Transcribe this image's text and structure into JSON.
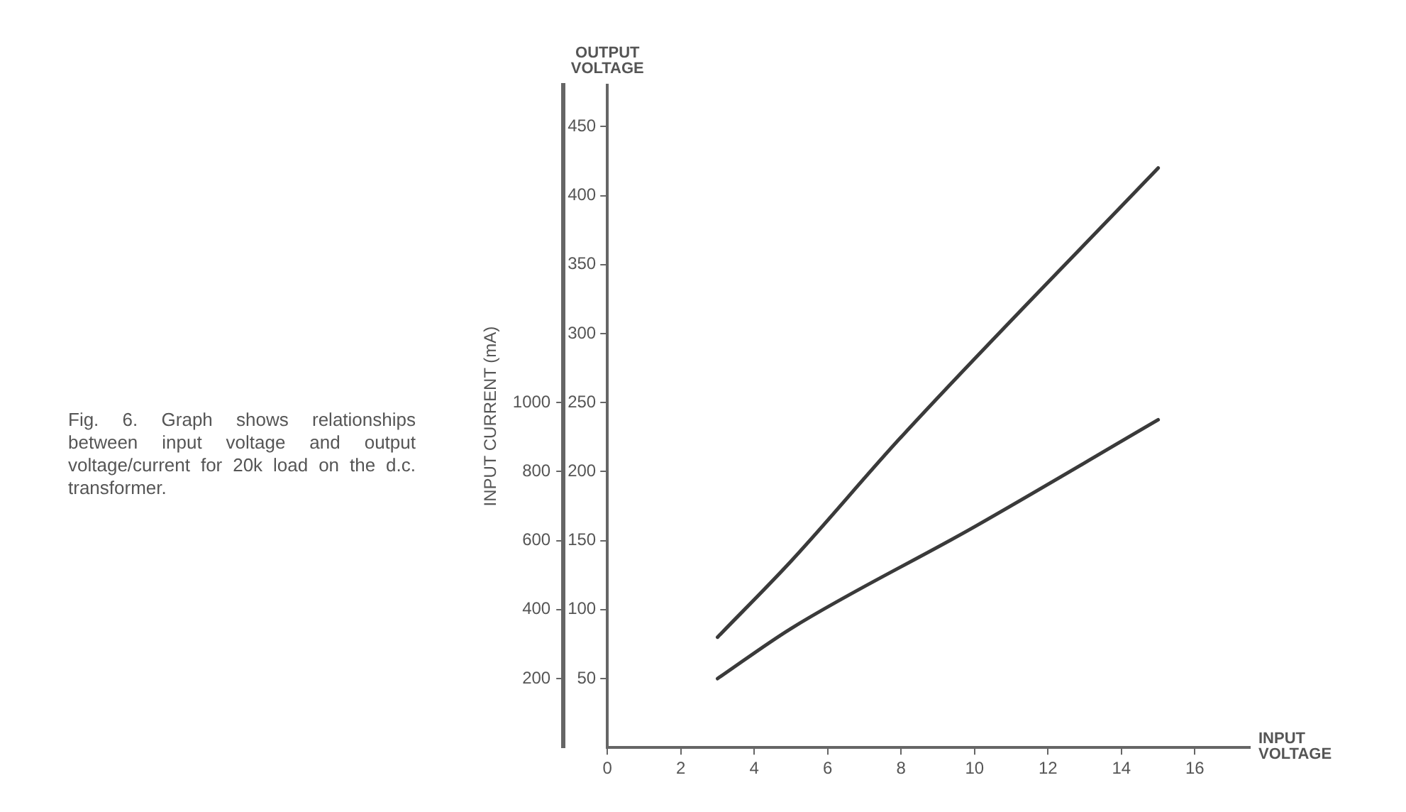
{
  "chart_data": {
    "type": "line",
    "xlabel": "INPUT VOLTAGE",
    "ylabel": "OUTPUT VOLTAGE",
    "y2label": "INPUT CURRENT (mA)",
    "annotations": [
      "Fig. 6. Graph shows relationships between input voltage and output voltage/current for 20k load on the d.c. transformer."
    ],
    "xlim": [
      0,
      17.5
    ],
    "xticks": [
      0,
      2,
      4,
      6,
      8,
      10,
      12,
      14,
      16
    ],
    "ylim": [
      0,
      480
    ],
    "yticks": [
      50,
      100,
      150,
      200,
      250,
      300,
      350,
      400,
      450
    ],
    "y2lim": [
      0,
      1920
    ],
    "y2ticks": [
      200,
      400,
      600,
      800,
      1000
    ],
    "grid": false,
    "legend": false,
    "marker": "none",
    "line_style": "solid",
    "series": [
      {
        "color": "#3a3a3a",
        "x": [
          3,
          5,
          8,
          15
        ],
        "values": [
          80,
          135,
          225,
          420
        ]
      },
      {
        "color": "#3a3a3a",
        "axis": "y2",
        "x": [
          3,
          5,
          10,
          15
        ],
        "values": [
          200,
          345,
          640,
          950
        ]
      }
    ]
  }
}
